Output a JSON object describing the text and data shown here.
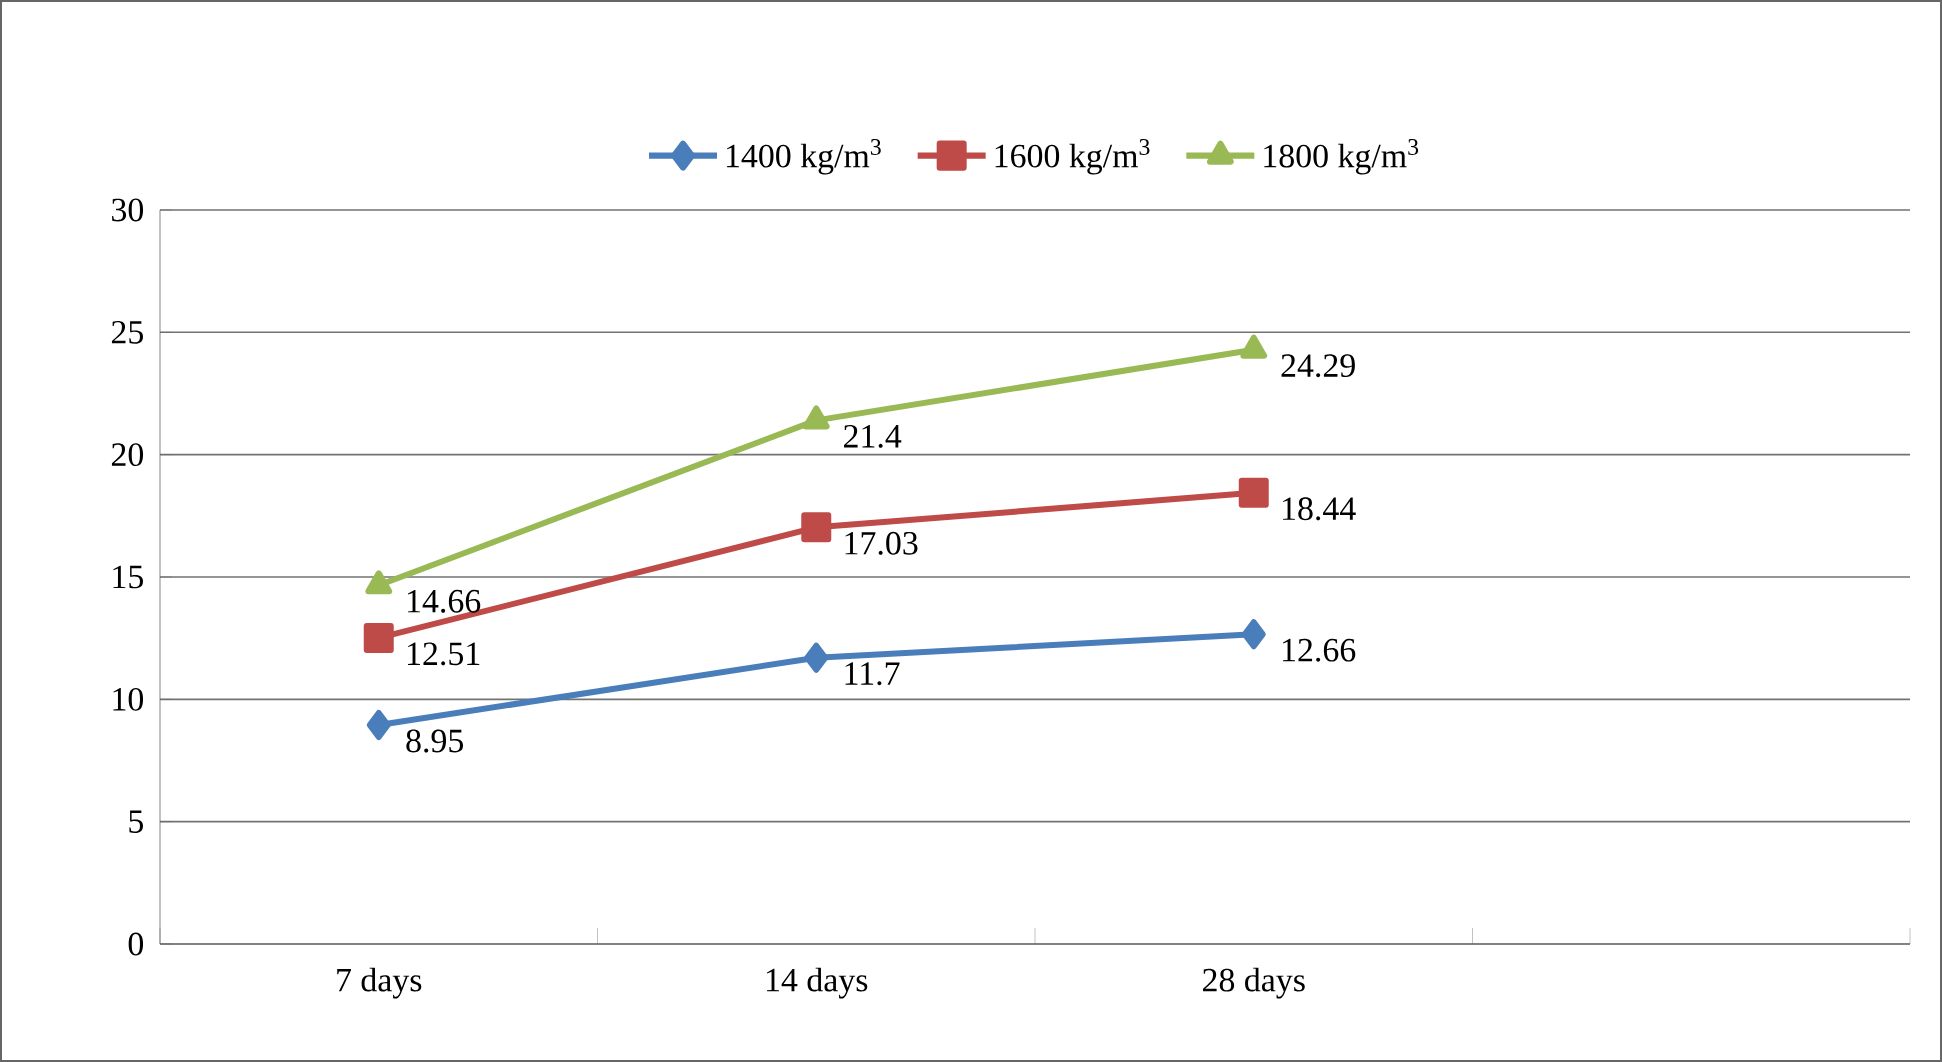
{
  "chart_data": {
    "type": "line",
    "categories": [
      "7 days",
      "14 days",
      "28 days",
      null
    ],
    "series": [
      {
        "name": "1400 kg/m$^{3}$",
        "color": "#4a7ebb",
        "marker": "diamond",
        "values": [
          8.95,
          11.7,
          12.66,
          null
        ]
      },
      {
        "name": "1600 kg/m$^{3}$",
        "color": "#be4b48",
        "marker": "square",
        "values": [
          12.51,
          17.03,
          18.44,
          null
        ]
      },
      {
        "name": "1800 kg/m$^{3}$",
        "color": "#98b954",
        "marker": "triangle",
        "values": [
          14.66,
          21.4,
          24.29,
          null
        ]
      }
    ],
    "ylim": [
      0,
      30
    ],
    "yticks": [
      0,
      5,
      10,
      15,
      20,
      25,
      30
    ],
    "grid": "y",
    "legend": "top",
    "data_labels": true,
    "line_style": "solid"
  }
}
